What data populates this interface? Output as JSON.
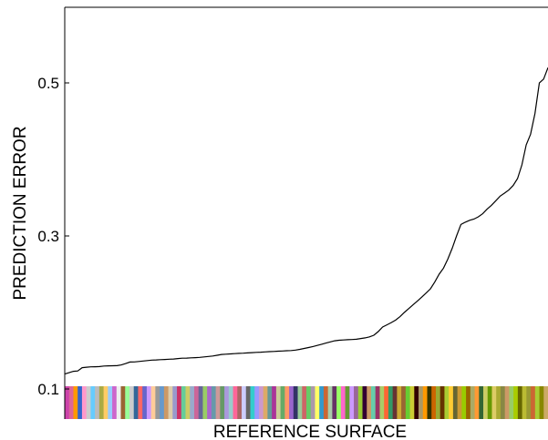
{
  "chart_data": {
    "type": "line",
    "title": "",
    "xlabel": "REFERENCE SURFACE",
    "ylabel": "PREDICTION ERROR",
    "ylim": [
      0.06,
      0.6
    ],
    "yticks": [
      0.1,
      0.3,
      0.5
    ],
    "ytick_labels": [
      "0.1",
      "0.3",
      "0.5"
    ],
    "grid": false,
    "legend": "none",
    "line_color": "#000000",
    "series": [
      {
        "values": [
          0.1195,
          0.1213,
          0.1231,
          0.1236,
          0.1279,
          0.1284,
          0.1289,
          0.1291,
          0.1293,
          0.13,
          0.1302,
          0.1304,
          0.1305,
          0.1314,
          0.1332,
          0.1352,
          0.1354,
          0.1359,
          0.1366,
          0.1372,
          0.1377,
          0.138,
          0.1383,
          0.1386,
          0.1389,
          0.1392,
          0.1398,
          0.1402,
          0.1404,
          0.1407,
          0.141,
          0.1413,
          0.1419,
          0.1425,
          0.1431,
          0.1441,
          0.1451,
          0.1455,
          0.1458,
          0.1462,
          0.1465,
          0.1468,
          0.1471,
          0.1475,
          0.1478,
          0.1481,
          0.1484,
          0.1488,
          0.1491,
          0.1494,
          0.1497,
          0.15,
          0.1502,
          0.1508,
          0.1518,
          0.153,
          0.1542,
          0.1555,
          0.1569,
          0.1584,
          0.16,
          0.1615,
          0.163,
          0.1637,
          0.164,
          0.1644,
          0.1647,
          0.165,
          0.166,
          0.1668,
          0.1681,
          0.1702,
          0.175,
          0.181,
          0.1838,
          0.1868,
          0.19,
          0.1945,
          0.2,
          0.205,
          0.21,
          0.215,
          0.22,
          0.2253,
          0.231,
          0.24,
          0.25,
          0.258,
          0.27,
          0.284,
          0.3,
          0.315,
          0.318,
          0.3205,
          0.322,
          0.325,
          0.329,
          0.335,
          0.34,
          0.346,
          0.352,
          0.356,
          0.36,
          0.366,
          0.375,
          0.393,
          0.419,
          0.433,
          0.46,
          0.5,
          0.505,
          0.52
        ],
        "strip_colors": [
          "#cc44aa",
          "#dd6699",
          "#ff9900",
          "#3366cc",
          "#ff99cc",
          "#cccccc",
          "#66ccff",
          "#bbbbbb",
          "#aaaa44",
          "#ffcc66",
          "#99ccff",
          "#cc66cc",
          "#eeeeee",
          "#996633",
          "#99ff99",
          "#cccccc",
          "#336699",
          "#ff6666",
          "#6666cc",
          "#cc99ff",
          "#ffcc99",
          "#999999",
          "#6699cc",
          "#cc9966",
          "#ddccaa",
          "#9999cc",
          "#cc3366",
          "#66cc99",
          "#cccc66",
          "#99aacc",
          "#cc6699",
          "#666699",
          "#99cc66",
          "#aa66cc",
          "#6699aa",
          "#cc9999",
          "#669966",
          "#aa99dd",
          "#99cccc",
          "#ff6699",
          "#aa6666",
          "#ccccff",
          "#666666",
          "#33cccc",
          "#9999ff",
          "#cc99cc",
          "#ddaa66",
          "#669999",
          "#aa3399",
          "#cccc99",
          "#66aa66",
          "#ff9966",
          "#9966cc",
          "#333366",
          "#99cc99",
          "#cc6666",
          "#66cc66",
          "#aa99aa",
          "#ffff66",
          "#3399cc",
          "#cc6633",
          "#aaccaa",
          "#663366",
          "#99ff66",
          "#ff66cc",
          "#669933",
          "#cc99ff",
          "#996699",
          "#99cc33",
          "#330033",
          "#cc9966",
          "#66ccaa",
          "#993366",
          "#aacc66",
          "#ff6633",
          "#339966",
          "#663333",
          "#ccaa33",
          "#996633",
          "#66cc33",
          "#cccc33",
          "#330000",
          "#aa9966",
          "#ff9900",
          "#333300",
          "#cc6600",
          "#99aa33",
          "#663300",
          "#aacc33",
          "#ffcc33",
          "#666633",
          "#cc9933",
          "#99cc00",
          "#996600",
          "#aaaa66",
          "#ff9933",
          "#336633",
          "#cccc66",
          "#669900",
          "#ddcc66",
          "#aaaa33",
          "#888844",
          "#cc9966",
          "#99cc66",
          "#aacc00",
          "#666600",
          "#bbbb33",
          "#999933",
          "#cc6633",
          "#aacc33",
          "#888800",
          "#ccaa66"
        ]
      }
    ]
  }
}
